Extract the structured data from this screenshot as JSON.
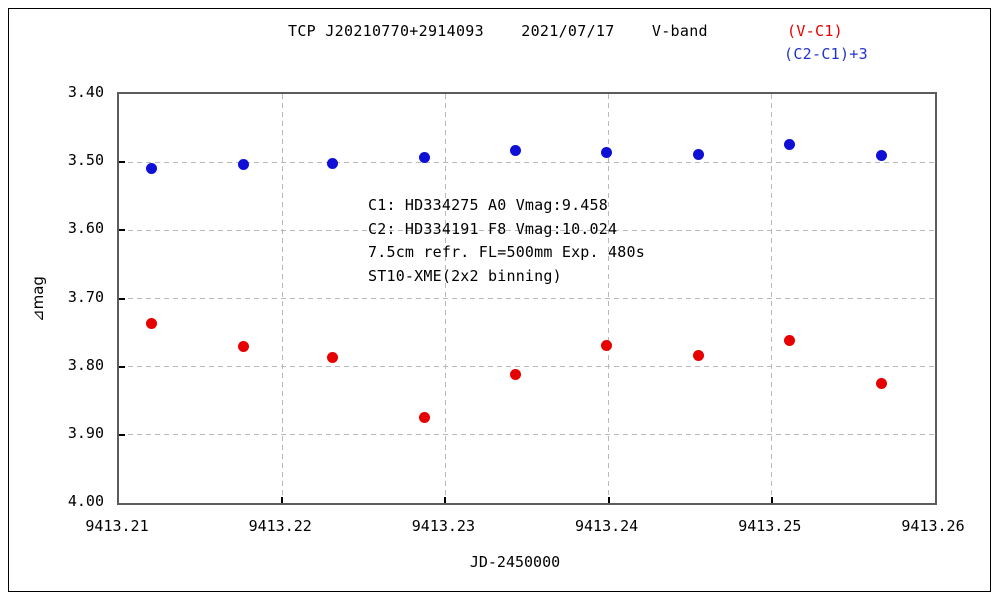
{
  "header": {
    "title": "TCP J20210770+2914093    2021/07/17    V-band",
    "legend": [
      {
        "label": "(V-C1)",
        "color": "#e60000"
      },
      {
        "label": "(C2-C1)+3",
        "color": "#2233cc"
      }
    ]
  },
  "annotation": {
    "lines": [
      "C1: HD334275 A0 Vmag:9.458",
      "C2: HD334191 F8 Vmag:10.024",
      "7.5cm refr. FL=500mm Exp. 480s",
      "ST10-XME(2x2 binning)"
    ]
  },
  "chart_data": {
    "type": "scatter",
    "title": "TCP J20210770+2914093 2021/07/17 V-band",
    "xlabel": "JD-2450000",
    "ylabel": "⊿mag",
    "xlim": [
      9413.21,
      9413.26
    ],
    "ylim": [
      3.4,
      4.0
    ],
    "y_inverted": true,
    "grid": "dashed",
    "legend_position": "top-right",
    "x_ticks": [
      {
        "v": 9413.21,
        "label": "9413.21"
      },
      {
        "v": 9413.22,
        "label": "9413.22"
      },
      {
        "v": 9413.23,
        "label": "9413.23"
      },
      {
        "v": 9413.24,
        "label": "9413.24"
      },
      {
        "v": 9413.25,
        "label": "9413.25"
      },
      {
        "v": 9413.26,
        "label": "9413.26"
      }
    ],
    "y_ticks": [
      {
        "v": 3.4,
        "label": "3.40"
      },
      {
        "v": 3.5,
        "label": "3.50"
      },
      {
        "v": 3.6,
        "label": "3.60"
      },
      {
        "v": 3.7,
        "label": "3.70"
      },
      {
        "v": 3.8,
        "label": "3.80"
      },
      {
        "v": 3.9,
        "label": "3.90"
      },
      {
        "v": 4.0,
        "label": "4.00"
      }
    ],
    "x": [
      9413.212,
      9413.2176,
      9413.2231,
      9413.2287,
      9413.2343,
      9413.2399,
      9413.2455,
      9413.2511,
      9413.2567
    ],
    "series": [
      {
        "name": "(V-C1)",
        "color": "#e60000",
        "values": [
          3.737,
          3.77,
          3.786,
          3.874,
          3.812,
          3.769,
          3.784,
          3.761,
          3.825
        ]
      },
      {
        "name": "(C2-C1)+3",
        "color": "#0f0fd6",
        "values": [
          3.509,
          3.504,
          3.502,
          3.493,
          3.483,
          3.486,
          3.489,
          3.474,
          3.49
        ]
      }
    ]
  }
}
